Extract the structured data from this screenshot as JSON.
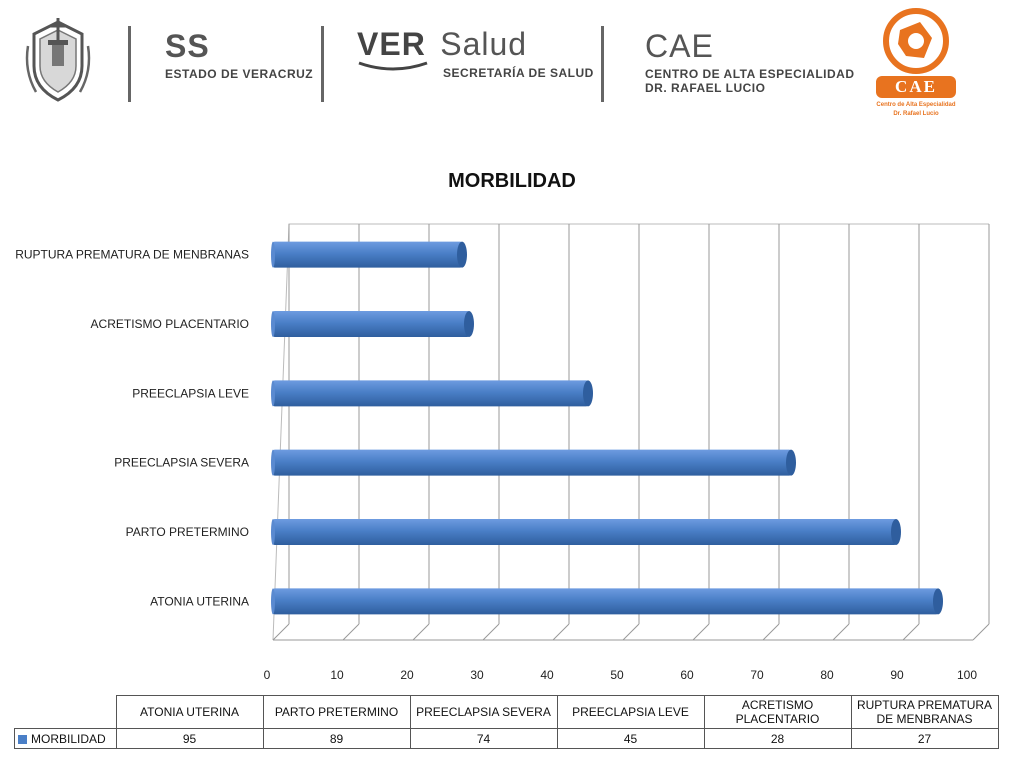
{
  "header": {
    "ss_big": "SS",
    "ss_small": "ESTADO DE VERACRUZ",
    "ver_big": "VER",
    "salud_big": "Salud",
    "ver_small": "SECRETARÍA DE SALUD",
    "cae_big": "CAE",
    "cae_small_1": "CENTRO DE ALTA ESPECIALIDAD",
    "cae_small_2": "DR. RAFAEL LUCIO",
    "logo_text": "CAE",
    "logo_sub_1": "Centro de Alta Especialidad",
    "logo_sub_2": "Dr. Rafael Lucio"
  },
  "colors": {
    "bar": "#4a7fc7",
    "bar_dark": "#2f5e9e",
    "accent_orange": "#e8731f"
  },
  "chart_data": {
    "type": "bar",
    "orientation": "horizontal",
    "title": "MORBILIDAD",
    "categories": [
      "ATONIA UTERINA",
      "PARTO PRETERMINO",
      "PREECLAPSIA SEVERA",
      "PREECLAPSIA LEVE",
      "ACRETISMO PLACENTARIO",
      "RUPTURA PREMATURA DE MENBRANAS"
    ],
    "series": [
      {
        "name": "MORBILIDAD",
        "values": [
          95,
          89,
          74,
          45,
          28,
          27
        ]
      }
    ],
    "xlim": [
      0,
      100
    ],
    "xticks": [
      "0",
      "10",
      "20",
      "30",
      "40",
      "50",
      "60",
      "70",
      "80",
      "90",
      "100"
    ],
    "grid": true,
    "table_headers": [
      "ATONIA UTERINA",
      "PARTO PRETERMINO",
      "PREECLAPSIA SEVERA",
      "PREECLAPSIA LEVE",
      "ACRETISMO PLACENTARIO",
      "RUPTURA PREMATURA DE MENBRANAS"
    ],
    "table_values": [
      "95",
      "89",
      "74",
      "45",
      "28",
      "27"
    ]
  }
}
